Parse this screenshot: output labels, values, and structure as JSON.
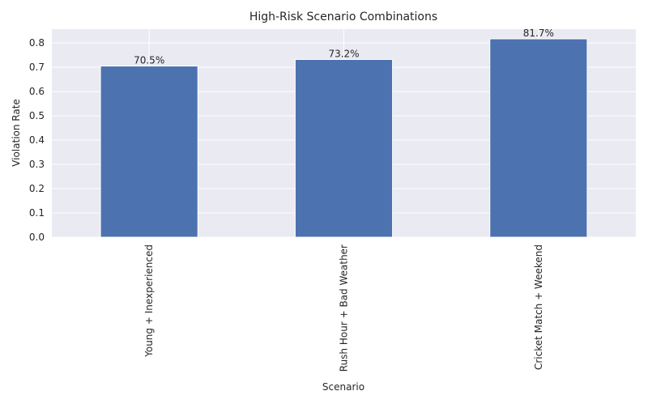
{
  "chart_data": {
    "type": "bar",
    "title": "High-Risk Scenario Combinations",
    "xlabel": "Scenario",
    "ylabel": "Violation Rate",
    "categories": [
      "Young + Inexperienced",
      "Rush Hour + Bad Weather",
      "Cricket Match + Weekend"
    ],
    "values": [
      0.705,
      0.732,
      0.817
    ],
    "data_labels": [
      "70.5%",
      "73.2%",
      "81.7%"
    ],
    "yticks": [
      "0.0",
      "0.1",
      "0.2",
      "0.3",
      "0.4",
      "0.5",
      "0.6",
      "0.7",
      "0.8"
    ],
    "ylim": [
      0,
      0.857
    ],
    "grid": true,
    "colors": {
      "bar": "#4c72b0",
      "plot_background": "#eaeaf2",
      "grid": "#ffffff",
      "text": "#262626"
    }
  }
}
